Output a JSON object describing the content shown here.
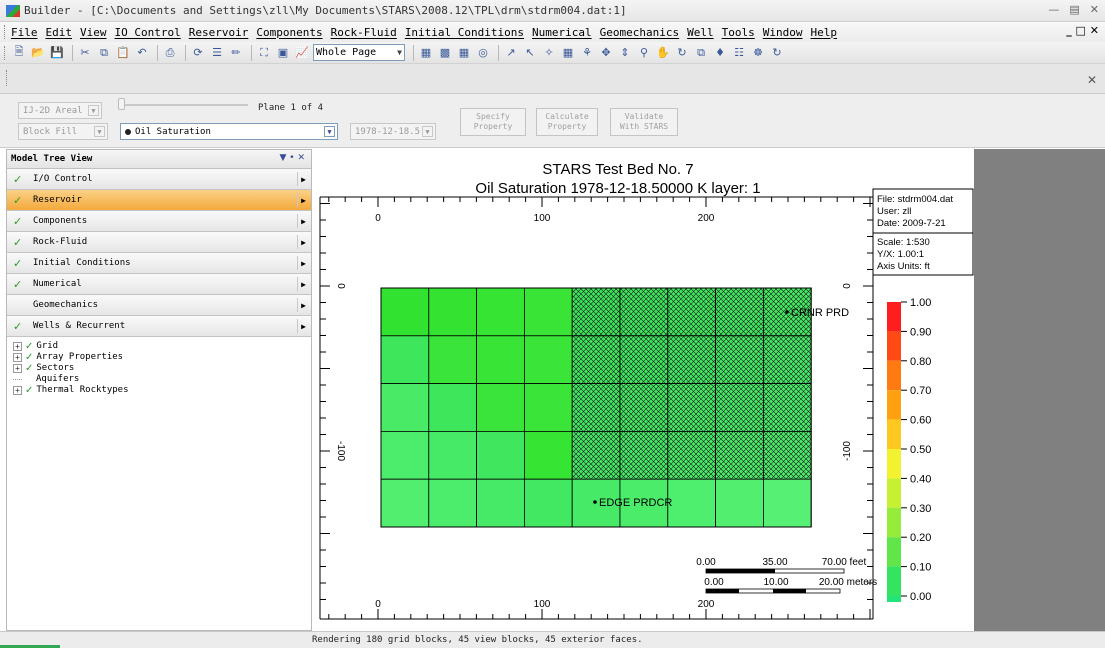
{
  "window": {
    "title": "Builder - [C:\\Documents and Settings\\zll\\My Documents\\STARS\\2008.12\\TPL\\drm\\stdrm004.dat:1]"
  },
  "menu": [
    "File",
    "Edit",
    "View",
    "IO Control",
    "Reservoir",
    "Components",
    "Rock-Fluid",
    "Initial Conditions",
    "Numerical",
    "Geomechanics",
    "Well",
    "Tools",
    "Window",
    "Help"
  ],
  "toolbar": {
    "zoom": "Whole Page"
  },
  "controls": {
    "view_mode": "IJ-2D Areal",
    "fill_mode": "Block Fill",
    "property": "Oil Saturation",
    "date": "1978-12-18.5",
    "plane": "Plane 1 of 4",
    "buttons": {
      "specify": [
        "Specify",
        "Property"
      ],
      "calculate": [
        "Calculate",
        "Property"
      ],
      "validate": [
        "Validate",
        "With STARS"
      ]
    }
  },
  "sidebar": {
    "title": "Model Tree View",
    "items": [
      {
        "label": "I/O Control",
        "checked": true,
        "selected": false
      },
      {
        "label": "Reservoir",
        "checked": true,
        "selected": true
      },
      {
        "label": "Components",
        "checked": true,
        "selected": false
      },
      {
        "label": "Rock-Fluid",
        "checked": true,
        "selected": false
      },
      {
        "label": "Initial Conditions",
        "checked": true,
        "selected": false
      },
      {
        "label": "Numerical",
        "checked": true,
        "selected": false
      },
      {
        "label": "Geomechanics",
        "checked": false,
        "selected": false
      },
      {
        "label": "Wells & Recurrent",
        "checked": true,
        "selected": false
      }
    ],
    "tree": [
      {
        "label": "Grid",
        "expandable": true,
        "checked": true
      },
      {
        "label": "Array Properties",
        "expandable": true,
        "checked": true
      },
      {
        "label": "Sectors",
        "expandable": true,
        "checked": true
      },
      {
        "label": "Aquifers",
        "expandable": false,
        "checked": false
      },
      {
        "label": "Thermal Rocktypes",
        "expandable": true,
        "checked": true
      }
    ]
  },
  "plot": {
    "title": "STARS Test Bed No. 7",
    "subtitle": "Oil Saturation 1978-12-18.50000     K layer: 1",
    "info": {
      "file": "File: stdrm004.dat",
      "user": "User: zll",
      "date": "Date: 2009-7-21",
      "scale": "Scale: 1:530",
      "yx": "Y/X: 1.00:1",
      "units": "Axis Units: ft"
    },
    "x_ticks": [
      "0",
      "100",
      "200"
    ],
    "y_ticks": [
      "0",
      "-100"
    ],
    "wells": [
      {
        "label": "CRNR PRD"
      },
      {
        "label": "EDGE PRDCR"
      }
    ],
    "scalebar": {
      "feet": [
        "0.00",
        "35.00",
        "70.00 feet"
      ],
      "meters": [
        "0.00",
        "10.00",
        "20.00 meters"
      ]
    },
    "colorbar": {
      "labels": [
        "1.00",
        "0.90",
        "0.80",
        "0.70",
        "0.60",
        "0.50",
        "0.40",
        "0.30",
        "0.20",
        "0.10",
        "0.00"
      ],
      "colors": [
        "#ff1e1e",
        "#ff4a14",
        "#ff7a10",
        "#ffa010",
        "#ffc820",
        "#f2f230",
        "#c8f032",
        "#96ec3a",
        "#60e648",
        "#32e460",
        "#22e478"
      ]
    },
    "grid_colors": [
      [
        "#32e230",
        "#34e232",
        "#36e434",
        "#3ae436",
        "#3ce65a",
        "#3ee65c",
        "#40e85e",
        "#42e860",
        "#44ea62"
      ],
      [
        "#3ee65c",
        "#3ae43a",
        "#38e436",
        "#3ae438",
        "#40e85e",
        "#40e860",
        "#42e862",
        "#44ea64",
        "#46ea66"
      ],
      [
        "#48ea66",
        "#3ee65c",
        "#3ae43a",
        "#3ae438",
        "#42e862",
        "#44e862",
        "#46ea64",
        "#46ea66",
        "#48ec68"
      ],
      [
        "#4cec6c",
        "#46ea66",
        "#40e65e",
        "#36e434",
        "#44e864",
        "#46ea66",
        "#48ec66",
        "#4aec68",
        "#4cec6a"
      ],
      [
        "#52ee70",
        "#4cec6c",
        "#46ea66",
        "#42e862",
        "#46ea66",
        "#4aec6a",
        "#4eee6e",
        "#52ee70",
        "#56f074"
      ]
    ]
  },
  "status": "Rendering 180 grid blocks, 45 view blocks, 45 exterior faces."
}
